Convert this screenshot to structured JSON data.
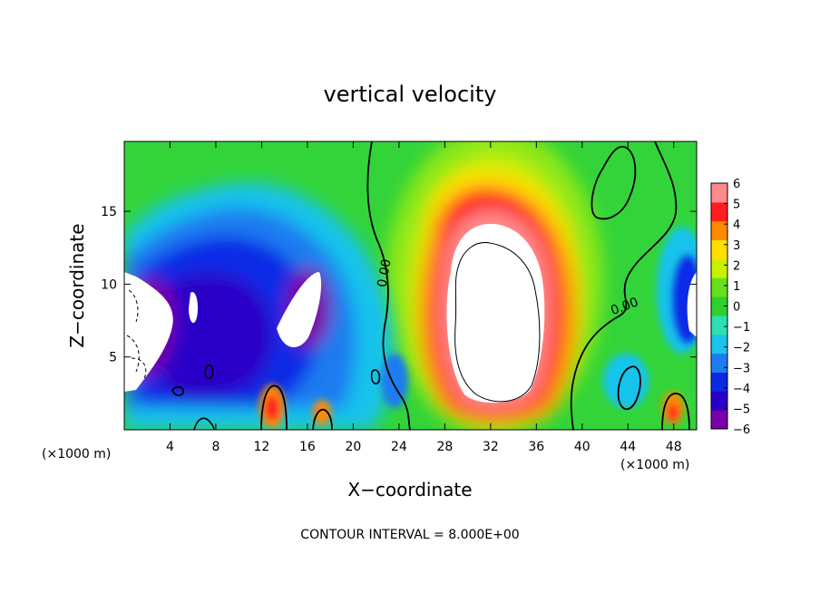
{
  "chart_data": {
    "type": "heatmap",
    "title": "vertical velocity",
    "xlabel": "X−coordinate",
    "ylabel": "Z−coordinate",
    "x_unit": "(×1000 m)",
    "x_unit_right": "(×1000 m)",
    "xlim": [
      0,
      50
    ],
    "ylim": [
      0,
      19.8
    ],
    "x_ticks": [
      4,
      8,
      12,
      16,
      20,
      24,
      28,
      32,
      36,
      40,
      44,
      48
    ],
    "y_ticks": [
      5,
      10,
      15
    ],
    "colorbar": {
      "ticks": [
        6,
        5,
        4,
        3,
        2,
        1,
        0,
        -1,
        -2,
        -3,
        -4,
        -5,
        -6
      ],
      "tick_labels": [
        "6",
        "5",
        "4",
        "3",
        "2",
        "1",
        "0",
        "−1",
        "−2",
        "−3",
        "−4",
        "−5",
        "−6"
      ],
      "range": [
        -6,
        6
      ],
      "colors": [
        "#7a00a8",
        "#2a00c8",
        "#0a2ae6",
        "#1f7cf0",
        "#19c3ec",
        "#2ee0b0",
        "#2ed02e",
        "#66e01a",
        "#c8f000",
        "#ffe000",
        "#ff8a00",
        "#ff1e1e",
        "#ff8a8a"
      ]
    },
    "contour_labels": [
      "0.00",
      "0.00"
    ],
    "annotation": "CONTOUR INTERVAL = 8.000E+00",
    "features": [
      {
        "type": "updraft",
        "x": [
          26,
          40
        ],
        "z": [
          0.5,
          17.8
        ],
        "peak": "white (> 6)"
      },
      {
        "type": "downdraft",
        "x": [
          0,
          22
        ],
        "z": [
          0.5,
          17
        ],
        "peak": "white (< -6)"
      },
      {
        "type": "updraft-spot",
        "x": 13,
        "z": 1.5
      },
      {
        "type": "updraft-spot",
        "x": 17.5,
        "z": 1.2
      },
      {
        "type": "updraft-spot",
        "x": 48,
        "z": 1.2
      }
    ]
  }
}
